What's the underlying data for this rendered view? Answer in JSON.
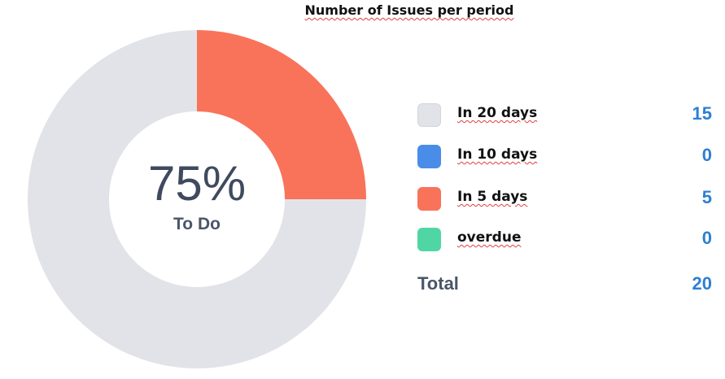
{
  "chart_data": {
    "type": "pie",
    "title": "Number of Issues per period",
    "center": {
      "value": "75%",
      "label": "To Do"
    },
    "slices": [
      {
        "name": "In 20 days",
        "value": 15,
        "color": "#e2e3e8"
      },
      {
        "name": "In 10 days",
        "value": 0,
        "color": "#4a8de8"
      },
      {
        "name": "In 5 days",
        "value": 5,
        "color": "#f8735a"
      },
      {
        "name": "overdue",
        "value": 0,
        "color": "#4fd6a4"
      }
    ],
    "total": {
      "label": "Total",
      "value": 20
    },
    "legend": "right"
  }
}
